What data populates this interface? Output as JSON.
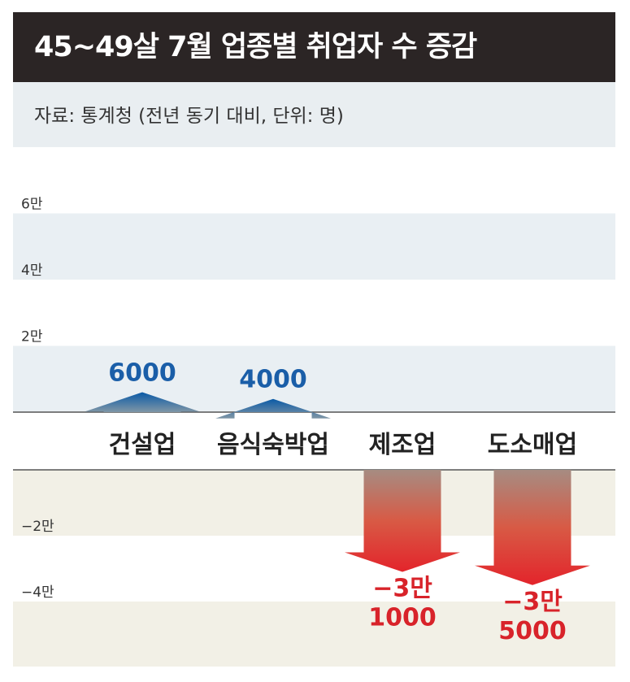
{
  "title": "45~49살 7월 업종별 취업자 수 증감",
  "source": "자료: 통계청 (전년 동기 대비, 단위: 명)",
  "colors": {
    "positive_label": "#1a5ea8",
    "negative_label": "#d8232a",
    "band_positive": "#e9eff3",
    "band_negative": "#f2f0e6",
    "bottom_negative_bg": "#f7f5ee"
  },
  "chart_data": {
    "type": "bar",
    "categories": [
      "건설업",
      "음식숙박업",
      "제조업",
      "도소매업"
    ],
    "values": [
      6000,
      4000,
      -31000,
      -35000
    ],
    "value_labels": [
      "6000",
      "4000",
      [
        "−3만",
        "1000"
      ],
      [
        "−3만",
        "5000"
      ]
    ],
    "y_ticks": [
      {
        "value": 60000,
        "label": "6만"
      },
      {
        "value": 40000,
        "label": "4만"
      },
      {
        "value": 20000,
        "label": "2만"
      },
      {
        "value": -20000,
        "label": "−2만"
      },
      {
        "value": -40000,
        "label": "−4만"
      }
    ],
    "ylim": [
      -50000,
      65000
    ],
    "title": "45~49살 7월 업종별 취업자 수 증감",
    "ylabel": "",
    "xlabel": "",
    "grid": true
  }
}
